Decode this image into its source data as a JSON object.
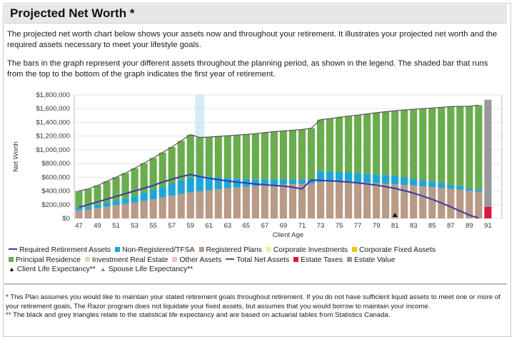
{
  "header": {
    "title": "Projected Net Worth *"
  },
  "intro": {
    "p1": "The projected net worth chart below shows your assets now and throughout your retirement. It illustrates your projected net worth and the required assets necessary to meet your lifestyle goals.",
    "p2": "The bars in the graph represent your different assets throughout the planning period, as shown in the legend. The shaded bar that runs from the top to the bottom of the graph indicates the first year of retirement."
  },
  "chart_data": {
    "type": "bar",
    "stacked": true,
    "xlabel": "Client Age",
    "ylabel": "Net Worth",
    "ylim": [
      0,
      1800000
    ],
    "ytick_values": [
      0,
      200000,
      400000,
      600000,
      800000,
      1000000,
      1200000,
      1400000,
      1600000,
      1800000
    ],
    "ytick_labels": [
      "$0",
      "$200,000",
      "$400,000",
      "$600,000",
      "$800,000",
      "$1,000,000",
      "$1,200,000",
      "$1,400,000",
      "$1,600,000",
      "$1,800,000"
    ],
    "ages": [
      47,
      48,
      49,
      50,
      51,
      52,
      53,
      54,
      55,
      56,
      57,
      58,
      59,
      60,
      61,
      62,
      63,
      64,
      65,
      66,
      67,
      68,
      69,
      70,
      71,
      72,
      73,
      74,
      75,
      76,
      77,
      78,
      79,
      80,
      81,
      82,
      83,
      84,
      85,
      86,
      87,
      88,
      89,
      90,
      91,
      92
    ],
    "xtick_labels": [
      "47",
      "49",
      "51",
      "53",
      "55",
      "57",
      "59",
      "61",
      "63",
      "65",
      "67",
      "69",
      "71",
      "73",
      "75",
      "77",
      "79",
      "81",
      "83",
      "85",
      "87",
      "89",
      "91"
    ],
    "retirement_start_age": 60,
    "grid": true,
    "series": [
      {
        "name": "Registered Plans",
        "color": "#b89a86",
        "values": [
          120000,
          130000,
          150000,
          170000,
          190000,
          210000,
          230000,
          255000,
          280000,
          305000,
          330000,
          355000,
          380000,
          395000,
          410000,
          425000,
          440000,
          450000,
          460000,
          470000,
          480000,
          488000,
          495000,
          500000,
          505000,
          510000,
          530000,
          530000,
          528000,
          526000,
          522000,
          518000,
          512000,
          505000,
          497000,
          488000,
          478000,
          468000,
          457000,
          445000,
          432000,
          420000,
          405000,
          390000,
          0,
          0
        ]
      },
      {
        "name": "Non-Registered/TFSA",
        "color": "#1fa6d6",
        "values": [
          40000,
          40000,
          50000,
          60000,
          70000,
          80000,
          100000,
          120000,
          140000,
          160000,
          180000,
          200000,
          220000,
          235000,
          200000,
          175000,
          150000,
          130000,
          115000,
          100000,
          90000,
          82000,
          75000,
          70000,
          65000,
          60000,
          160000,
          155000,
          150000,
          145000,
          140000,
          135000,
          130000,
          125000,
          120000,
          110000,
          100000,
          90000,
          80000,
          70000,
          60000,
          50000,
          40000,
          30000,
          0,
          0
        ]
      },
      {
        "name": "Principal Residence",
        "color": "#6aac4e",
        "values": [
          240000,
          260000,
          280000,
          310000,
          340000,
          370000,
          400000,
          430000,
          460000,
          495000,
          530000,
          575000,
          620000,
          550000,
          575000,
          595000,
          615000,
          635000,
          650000,
          665000,
          680000,
          695000,
          705000,
          715000,
          725000,
          745000,
          750000,
          770000,
          795000,
          820000,
          845000,
          870000,
          898000,
          925000,
          953000,
          982000,
          1012000,
          1042000,
          1073000,
          1105000,
          1138000,
          1162000,
          1190000,
          1230000,
          0,
          0
        ]
      },
      {
        "name": "Estate Taxes",
        "color": "#d81b3c",
        "values": [
          0,
          0,
          0,
          0,
          0,
          0,
          0,
          0,
          0,
          0,
          0,
          0,
          0,
          0,
          0,
          0,
          0,
          0,
          0,
          0,
          0,
          0,
          0,
          0,
          0,
          0,
          0,
          0,
          0,
          0,
          0,
          0,
          0,
          0,
          0,
          0,
          0,
          0,
          0,
          0,
          0,
          0,
          0,
          0,
          170000,
          0
        ]
      },
      {
        "name": "Estate Value",
        "color": "#999999",
        "values": [
          0,
          0,
          0,
          0,
          0,
          0,
          0,
          0,
          0,
          0,
          0,
          0,
          0,
          0,
          0,
          0,
          0,
          0,
          0,
          0,
          0,
          0,
          0,
          0,
          0,
          0,
          0,
          0,
          0,
          0,
          0,
          0,
          0,
          0,
          0,
          0,
          0,
          0,
          0,
          0,
          0,
          0,
          0,
          0,
          1560000,
          0
        ]
      }
    ],
    "lines": [
      {
        "name": "Required Retirement Assets",
        "color": "#3b3aa6",
        "values": [
          160000,
          200000,
          240000,
          280000,
          320000,
          360000,
          400000,
          440000,
          480000,
          530000,
          570000,
          610000,
          640000,
          610000,
          585000,
          565000,
          545000,
          530000,
          515000,
          500000,
          490000,
          480000,
          470000,
          455000,
          430000,
          560000,
          555000,
          548000,
          540000,
          530000,
          518000,
          503000,
          485000,
          463000,
          437000,
          405000,
          368000,
          325000,
          278000,
          225000,
          168000,
          108000,
          48000,
          5000,
          null,
          null
        ]
      },
      {
        "name": "Total Net Assets",
        "color": "#555555",
        "values": [
          400000,
          430000,
          480000,
          540000,
          600000,
          660000,
          730000,
          805000,
          880000,
          960000,
          1040000,
          1130000,
          1220000,
          1180000,
          1185000,
          1195000,
          1205000,
          1215000,
          1225000,
          1235000,
          1250000,
          1265000,
          1275000,
          1285000,
          1295000,
          1315000,
          1440000,
          1455000,
          1473000,
          1491000,
          1507000,
          1523000,
          1540000,
          1555000,
          1570000,
          1580000,
          1590000,
          1600000,
          1610000,
          1620000,
          1630000,
          1632000,
          1635000,
          1650000,
          null,
          null
        ]
      }
    ],
    "markers": [
      {
        "name": "Client Life Expectancy**",
        "age": 81,
        "value": 0,
        "symbol": "▲",
        "color": "#111111"
      }
    ]
  },
  "legend": {
    "row1": [
      {
        "label": "Required Retirement Assets",
        "kind": "line",
        "color": "#3b3aa6"
      },
      {
        "label": "Non-Registered/TFSA",
        "kind": "box",
        "color": "#1fa6d6"
      },
      {
        "label": "Registered Plans",
        "kind": "box",
        "color": "#b89a86"
      },
      {
        "label": "Corporate Investments",
        "kind": "box",
        "color": "#f5e9a8"
      },
      {
        "label": "Corporate Fixed Assets",
        "kind": "box",
        "color": "#f2c21b"
      }
    ],
    "row2": [
      {
        "label": "Principal Residence",
        "kind": "box",
        "color": "#6aac4e"
      },
      {
        "label": "Investment Real Estate",
        "kind": "box",
        "color": "#c9e3c0"
      },
      {
        "label": "Other Assets",
        "kind": "box",
        "color": "#f2bfd0"
      },
      {
        "label": "Total Net Assets",
        "kind": "line",
        "color": "#555555"
      },
      {
        "label": "Estate Taxes",
        "kind": "box",
        "color": "#d81b3c"
      },
      {
        "label": "Estate Value",
        "kind": "box",
        "color": "#999999"
      }
    ],
    "row3": [
      {
        "label": "Client Life Expectancy**",
        "kind": "tri",
        "color": "#111111"
      },
      {
        "label": "Spouse Life Expectancy**",
        "kind": "tri",
        "color": "#888888"
      }
    ]
  },
  "notes": {
    "n1": "* This Plan assumes you would like to maintain your stated retirement goals throughout retirement. If you do not have sufficient liquid assets to meet one or more of your retirement goals, The Razor program does not liquidate your fixed assets, but assumes that you would borrow to maintain your income.",
    "n2": "** The black and grey triangles relate to the statistical life expectancy and are based on actuarial tables from Statistics Canada."
  }
}
